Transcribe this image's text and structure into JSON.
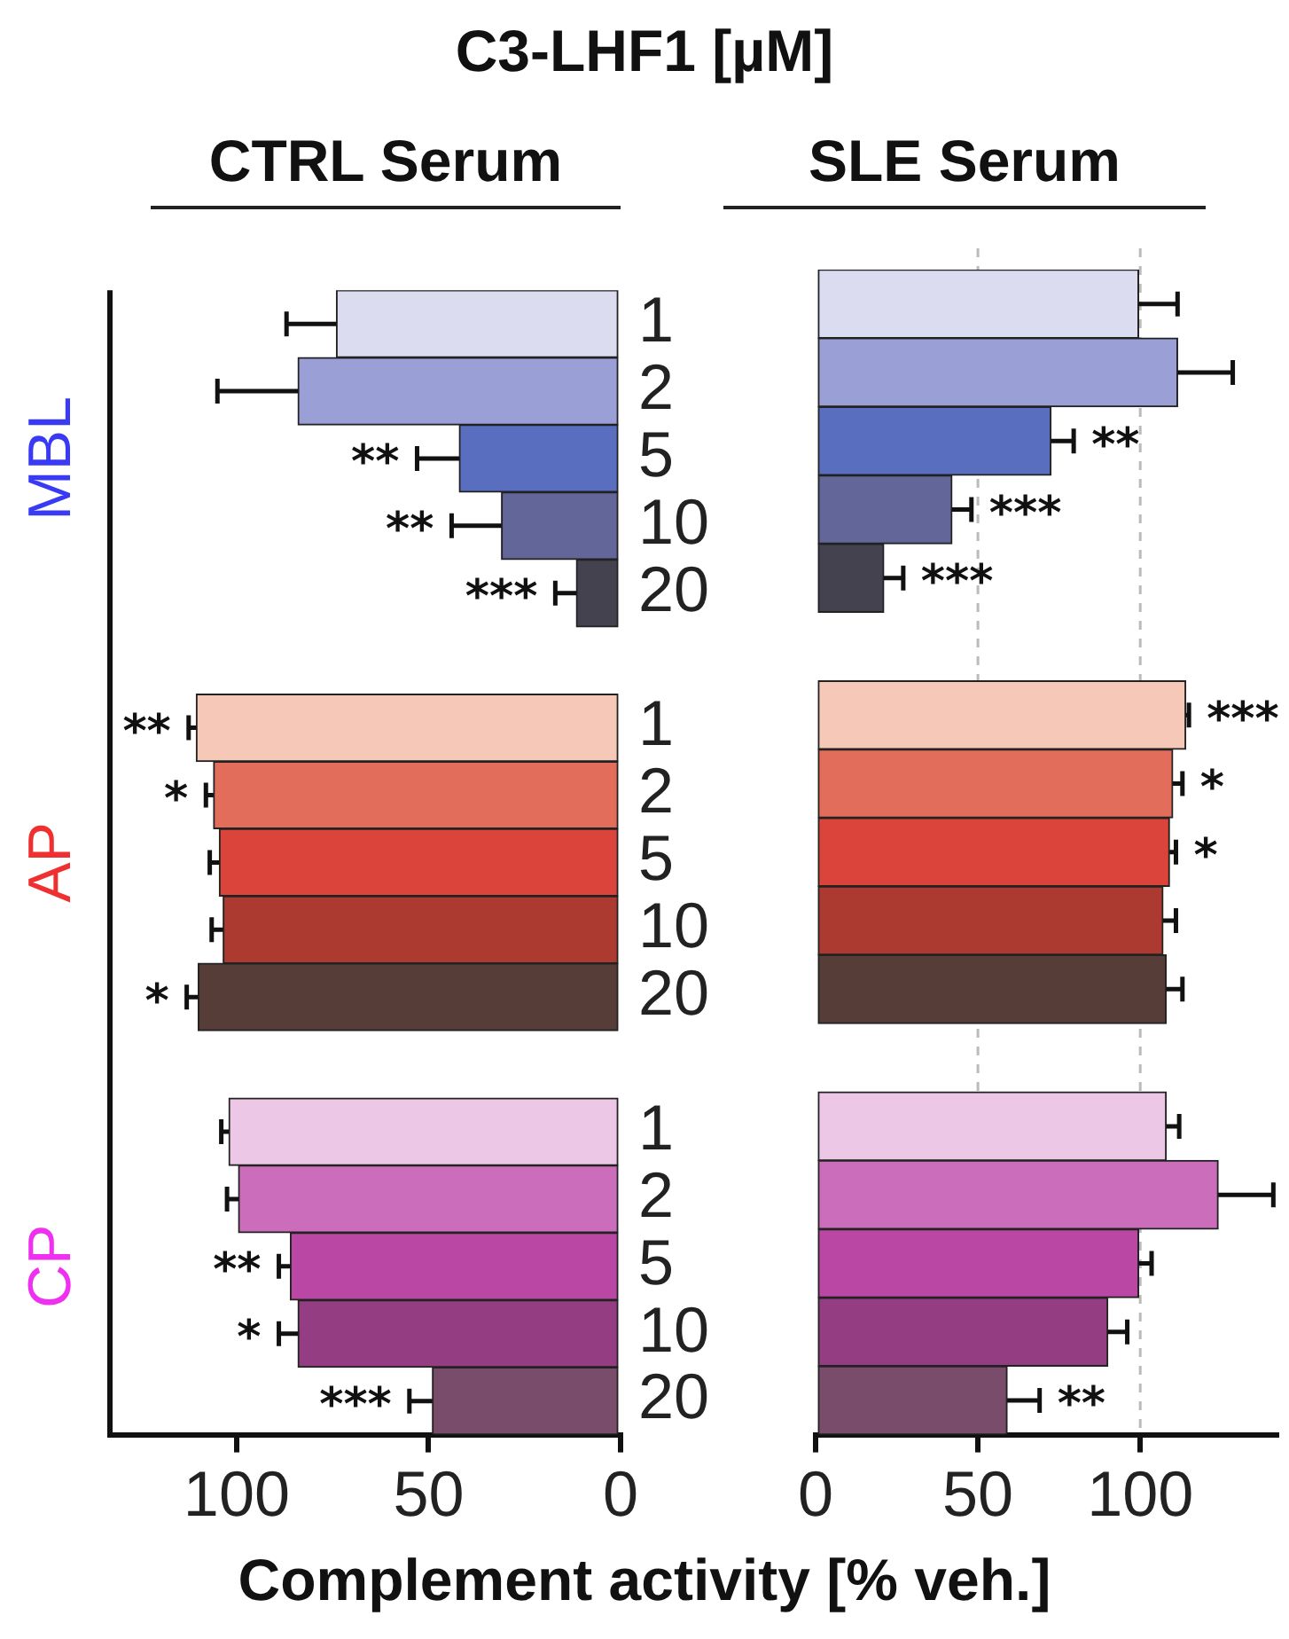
{
  "chart_data": [
    {
      "type": "bar",
      "orientation": "horizontal",
      "title": "CTRL Serum",
      "ylabel": "C3-LHF1 [µM]",
      "categories": [
        "1",
        "2",
        "5",
        "10",
        "20",
        null,
        "1",
        "2",
        "5",
        "10",
        "20",
        null,
        "1",
        "2",
        "5",
        "10",
        "20"
      ],
      "values": [
        74,
        84,
        42,
        31,
        11.5,
        null,
        110.5,
        106,
        104.5,
        103.5,
        110,
        null,
        102,
        99.5,
        86,
        84,
        49
      ],
      "errors": [
        13,
        21,
        11,
        13,
        5.5,
        null,
        2,
        2,
        2.5,
        3,
        3,
        null,
        2,
        3,
        3,
        5,
        6
      ],
      "value_labels": [
        null,
        null,
        "**",
        "**",
        "***",
        null,
        "**",
        "*",
        null,
        null,
        "*",
        null,
        null,
        null,
        "**",
        "*",
        "***"
      ],
      "colors": [
        "#dcdcf0",
        "#9a9fd6",
        "#5a6ebf",
        "#636699",
        "#45424f",
        "#ffffff",
        "#f5c8b8",
        "#e36d5b",
        "#db443a",
        "#ad3a30",
        "#563d37",
        "#ffffff",
        "#ecc8e6",
        "#cc6dbc",
        "#bb47a5",
        "#943d82",
        "#7a4c6c"
      ],
      "xlim": [
        133,
        0
      ],
      "xticks": [
        100,
        50,
        0
      ],
      "annotations": [
        "MBL",
        "AP",
        "CP"
      ]
    },
    {
      "type": "bar",
      "orientation": "horizontal",
      "title": "SLE Serum",
      "xlabel": "Complement activity [% veh.]",
      "categories": [
        "1",
        "2",
        "5",
        "10",
        "20",
        null,
        "1",
        "2",
        "5",
        "10",
        "20",
        null,
        "1",
        "2",
        "5",
        "10",
        "20"
      ],
      "values": [
        99.5,
        111.5,
        72.5,
        42,
        21,
        null,
        114,
        110,
        109,
        107,
        108,
        null,
        108,
        124,
        99.5,
        90,
        59
      ],
      "errors": [
        12,
        17,
        7,
        6,
        6,
        null,
        1,
        3,
        2,
        4,
        5,
        null,
        4,
        17,
        4,
        6,
        10
      ],
      "value_labels": [
        null,
        null,
        "**",
        "***",
        "***",
        null,
        "***",
        "*",
        "*",
        null,
        null,
        null,
        null,
        null,
        null,
        null,
        "**"
      ],
      "colors": [
        "#dcdcf0",
        "#9a9fd6",
        "#5a6ebf",
        "#636699",
        "#45424f",
        "#ffffff",
        "#f5c8b8",
        "#e36d5b",
        "#db443a",
        "#ad3a30",
        "#563d37",
        "#ffffff",
        "#ecc8e6",
        "#cc6dbc",
        "#bb47a5",
        "#943d82",
        "#7a4c6c"
      ],
      "xlim": [
        0,
        142
      ],
      "xticks": [
        0,
        50,
        100
      ],
      "ref_lines": [
        {
          "axis": "x",
          "value": 50,
          "color": "#bbbbbb",
          "line_style": "dashed"
        },
        {
          "axis": "x",
          "value": 100,
          "color": "#bbbbbb",
          "line_style": "dashed"
        }
      ],
      "tick_labels": "x"
    }
  ]
}
